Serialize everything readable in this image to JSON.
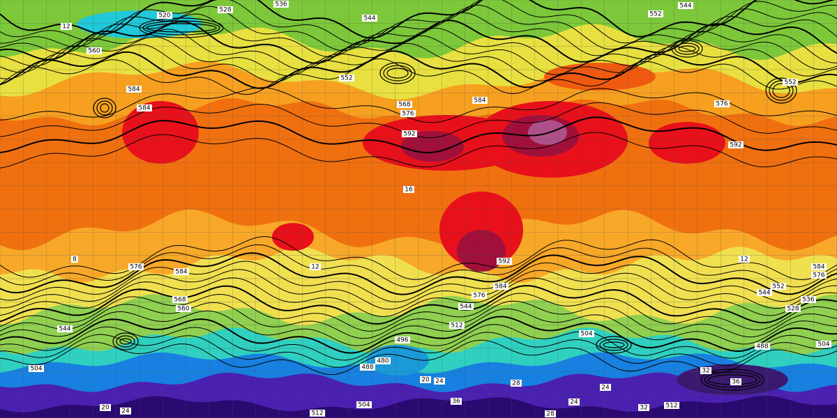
{
  "contour_labels": [
    "536",
    "520",
    "528",
    "544",
    "552",
    "544",
    "560",
    "552",
    "584",
    "584",
    "568",
    "576",
    "584",
    "592",
    "592",
    "576",
    "552",
    "576",
    "584",
    "568",
    "560",
    "544",
    "584",
    "576",
    "544",
    "512",
    "504",
    "496",
    "488",
    "480",
    "504",
    "504",
    "512",
    "512",
    "488",
    "504",
    "584",
    "576",
    "552",
    "544",
    "536",
    "528",
    "592"
  ],
  "temperature_labels": [
    "12",
    "16",
    "12",
    "20",
    "24",
    "28",
    "36",
    "32",
    "24",
    "24",
    "36",
    "32",
    "20",
    "24",
    "28",
    "8",
    "12"
  ]
}
